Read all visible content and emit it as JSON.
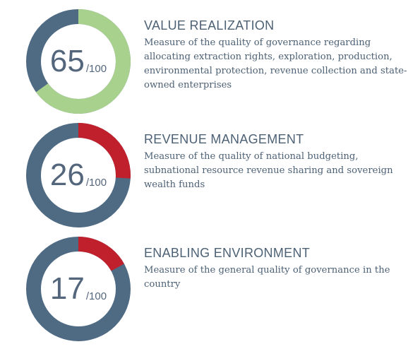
{
  "chart_data": [
    {
      "type": "pie",
      "title": "VALUE REALIZATION",
      "description": "Measure of the quality of governance regarding allocating extraction rights, exploration, production, environmental protection, revenue collection and state-owned enterprises",
      "score": 65,
      "max": 100,
      "max_label": "/100",
      "score_color": "#a9d18e",
      "remainder_color": "#4f6b84"
    },
    {
      "type": "pie",
      "title": "REVENUE MANAGEMENT",
      "description": "Measure of the quality of national budgeting, subnational resource revenue sharing and sovereign wealth funds",
      "score": 26,
      "max": 100,
      "max_label": "/100",
      "score_color": "#c0202c",
      "remainder_color": "#4f6b84"
    },
    {
      "type": "pie",
      "title": "ENABLING ENVIRONMENT",
      "description": "Measure of the general quality of governance in the country",
      "score": 17,
      "max": 100,
      "max_label": "/100",
      "score_color": "#c0202c",
      "remainder_color": "#4f6b84"
    }
  ]
}
